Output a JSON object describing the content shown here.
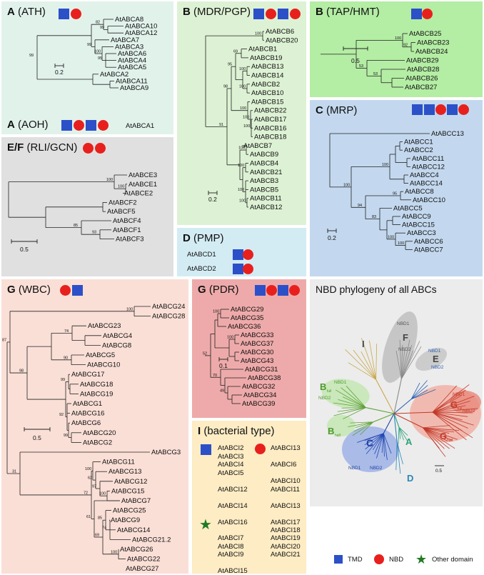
{
  "panels": {
    "ath": {
      "letter": "A",
      "name": "(ATH)",
      "color": "#e1f2eb"
    },
    "aoh": {
      "letter": "A",
      "name": "(AOH)",
      "leaf": "AtABCA1"
    },
    "mdr": {
      "letter": "B",
      "name": "(MDR/PGP)",
      "color": "#ddf2d4"
    },
    "tap": {
      "letter": "B",
      "name": "(TAP/HMT)",
      "color": "#b4eda4"
    },
    "mrp": {
      "letter": "C",
      "name": "(MRP)",
      "color": "#c3d8ee"
    },
    "rli": {
      "letter": "E/F",
      "name": "(RLI/GCN)",
      "color": "#e0e0e0"
    },
    "pmp": {
      "letter": "D",
      "name": "(PMP)",
      "color": "#d3ecf4",
      "items": [
        "AtABCD1",
        "AtABCD2"
      ]
    },
    "wbc": {
      "letter": "G",
      "name": "(WBC)",
      "color": "#fadfd6"
    },
    "pdr": {
      "letter": "G",
      "name": "(PDR)",
      "color": "#eeaaaa"
    },
    "bact": {
      "letter": "I",
      "name": "(bacterial type)",
      "color": "#fdecc4",
      "col1a": [
        "AtABCI2",
        "AtABCI3",
        "AtABCI4",
        "AtABCI5",
        "AtABCI12",
        "AtABCI14",
        "AtABCI16"
      ],
      "col1b": [
        "AtABCI7",
        "AtABCI8",
        "AtABCI9",
        "AtABCI15"
      ],
      "col2a": [
        "AtABCI13",
        "AtABCI6"
      ],
      "col2b": [
        "AtABCI10",
        "AtABCI11",
        "AtABCI13",
        "AtABCI17",
        "AtABCI18",
        "AtABCI19",
        "AtABCI20",
        "AtABCI21"
      ]
    },
    "nbd": {
      "title": "NBD phylogeny of all ABCs",
      "color": "#ececec",
      "labels": {
        "I": "I",
        "F": "F",
        "E": "E",
        "C": "C",
        "A": "A",
        "D": "D",
        "B": "B",
        "G": "G"
      },
      "sublabels": {
        "nbd1": "NBD1",
        "nbd2": "NBD2",
        "half": "half",
        "full": "full"
      },
      "scale": "0.5"
    }
  },
  "trees": {
    "ath": {
      "leaves": [
        "AtABCA8",
        "AtABCA10",
        "AtABCA12",
        "AtABCA7",
        "AtABCA3",
        "AtABCA6",
        "AtABCA4",
        "AtABCA5",
        "AtABCA2",
        "AtABCA11",
        "AtABCA9"
      ],
      "boot": [
        "99",
        "82",
        "99",
        "95",
        "96",
        "100",
        "99"
      ],
      "scale": "0.2"
    },
    "mdr": {
      "leaves": [
        "AtABCB6",
        "AtABCB20",
        "AtABCB1",
        "AtABCB19",
        "AtABCB13",
        "AtABCB14",
        "AtABCB2",
        "AtABCB10",
        "AtABCB15",
        "AtABCB22",
        "AtABCB17",
        "AtABCB16",
        "AtABCB18",
        "AtABCB7",
        "AtABCB9",
        "AtABCB4",
        "AtABCB21",
        "AtABCB3",
        "AtABCB5",
        "AtABCB11",
        "AtABCB12"
      ],
      "boot": [
        "100",
        "91",
        "69",
        "95",
        "100",
        "100",
        "100",
        "100",
        "100",
        "98",
        "100",
        "100",
        "100",
        "100"
      ],
      "scale": "0.2"
    },
    "tap": {
      "leaves": [
        "AtABCB25",
        "AtABCB23",
        "AtABCB24",
        "AtABCB29",
        "AtABCB28",
        "AtABCB26",
        "AtABCB27"
      ],
      "boot": [
        "100",
        "92",
        "53",
        "53"
      ],
      "scale": "0.5"
    },
    "mrp": {
      "leaves": [
        "AtABCC13",
        "AtABCC1",
        "AtABCC2",
        "AtABCC11",
        "AtABCC12",
        "AtABCC4",
        "AtABCC14",
        "AtABCC8",
        "AtABCC10",
        "AtABCC5",
        "AtABCC9",
        "AtABCC15",
        "AtABCC3",
        "AtABCC6",
        "AtABCC7"
      ],
      "boot": [
        "100",
        "100",
        "95",
        "94",
        "83",
        "100",
        "100"
      ],
      "scale": "0.2"
    },
    "rli": {
      "leaves": [
        "AtABCE3",
        "AtABCE1",
        "AtABCE2",
        "AtABCF2",
        "AtABCF5",
        "AtABCF4",
        "AtABCF1",
        "AtABCF3"
      ],
      "boot": [
        "100",
        "100",
        "85",
        "93"
      ],
      "scale": "0.5"
    },
    "wbc": {
      "leaves": [
        "AtABCG24",
        "AtABCG28",
        "AtABCG23",
        "AtABCG4",
        "AtABCG8",
        "AtABCG5",
        "AtABCG10",
        "AtABCG17",
        "AtABCG18",
        "AtABCG19",
        "AtABCG1",
        "AtABCG16",
        "AtABCG6",
        "AtABCG20",
        "AtABCG2",
        "AtABCG3",
        "AtABCG11",
        "AtABCG13",
        "AtABCG12",
        "AtABCG15",
        "AtABCG7",
        "AtABCG25",
        "AtABCG9",
        "AtABCG14",
        "AtABCG21.2",
        "AtABCG26",
        "AtABCG22",
        "AtABCG27"
      ],
      "boot": [
        "100",
        "98",
        "74",
        "90",
        "99",
        "92",
        "87",
        "99",
        "100",
        "62",
        "97",
        "100",
        "31",
        "72",
        "61",
        "85",
        "74",
        "69",
        "100"
      ],
      "scale": "0.5"
    },
    "pdr": {
      "leaves": [
        "AtABCG29",
        "AtABCG35",
        "AtABCG36",
        "AtABCG33",
        "AtABCG37",
        "AtABCG30",
        "AtABCG43",
        "AtABCG31",
        "AtABCG38",
        "AtABCG32",
        "AtABCG34",
        "AtABCG39"
      ],
      "boot": [
        "100",
        "100",
        "52",
        "70",
        "49"
      ],
      "scale": "0.1"
    }
  },
  "legend": {
    "tmd": "TMD",
    "nbd": "NBD",
    "other": "Other domain"
  },
  "colors": {
    "tmd": "#2c50c8",
    "nbd": "#e8201d",
    "other": "#1f7a25"
  }
}
